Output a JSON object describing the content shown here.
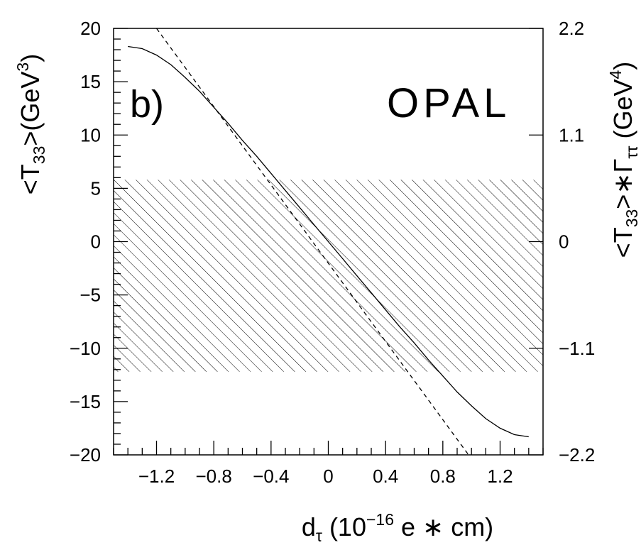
{
  "chart_data": {
    "type": "line",
    "panel_label": "b)",
    "experiment_label": "OPAL",
    "xlabel": {
      "main": "d",
      "sub": "τ",
      "open": " (10",
      "exp": "−16",
      "close": " e ∗ cm)"
    },
    "ylabel_left": {
      "open": "<T",
      "sub": "33",
      "mid": ">(GeV",
      "exp": "3",
      "close": ")"
    },
    "ylabel_right": {
      "open": "<T",
      "sub": "33",
      "mid": ">∗Γ",
      "sub2": "ττ",
      "unit_open": " (GeV",
      "exp": "4",
      "close": ")"
    },
    "xlim": [
      -1.5,
      1.5
    ],
    "ylim": [
      -20,
      20
    ],
    "x_ticks": [
      -1.2,
      -0.8,
      -0.4,
      0,
      0.4,
      0.8,
      1.2
    ],
    "x_tick_labels": [
      "−1.2",
      "−0.8",
      "−0.4",
      "0",
      "0.4",
      "0.8",
      "1.2"
    ],
    "y_ticks": [
      20,
      15,
      10,
      5,
      0,
      -5,
      -10,
      -15,
      -20
    ],
    "y_tick_labels": [
      "20",
      "15",
      "10",
      "5",
      "0",
      "−5",
      "−10",
      "−15",
      "−20"
    ],
    "right_ticks": [
      20,
      10,
      0,
      -10,
      -20
    ],
    "right_tick_labels": [
      "2.2",
      "1.1",
      "0",
      "−1.1",
      "−2.2"
    ],
    "excluded_band": {
      "y_min": -12.2,
      "y_max": 5.8,
      "style": "hatched"
    },
    "series": [
      {
        "style": "solid",
        "x": [
          -1.4,
          -1.3,
          -1.2,
          -1.1,
          -1.0,
          -0.9,
          -0.8,
          -0.7,
          -0.6,
          -0.5,
          -0.4,
          -0.3,
          -0.2,
          -0.1,
          0.0,
          0.1,
          0.2,
          0.3,
          0.4,
          0.5,
          0.6,
          0.7,
          0.8,
          0.9,
          1.0,
          1.1,
          1.2,
          1.3,
          1.4
        ],
        "y": [
          18.3,
          18.1,
          17.5,
          16.6,
          15.4,
          14.1,
          12.6,
          11.1,
          9.5,
          8.0,
          6.4,
          4.8,
          3.2,
          1.6,
          0.0,
          -1.6,
          -3.2,
          -4.8,
          -6.4,
          -8.0,
          -9.5,
          -11.1,
          -12.6,
          -14.1,
          -15.4,
          -16.6,
          -17.5,
          -18.1,
          -18.3
        ]
      },
      {
        "style": "dashed",
        "x": [
          -1.2,
          0.98
        ],
        "y": [
          20,
          -20
        ]
      }
    ]
  }
}
